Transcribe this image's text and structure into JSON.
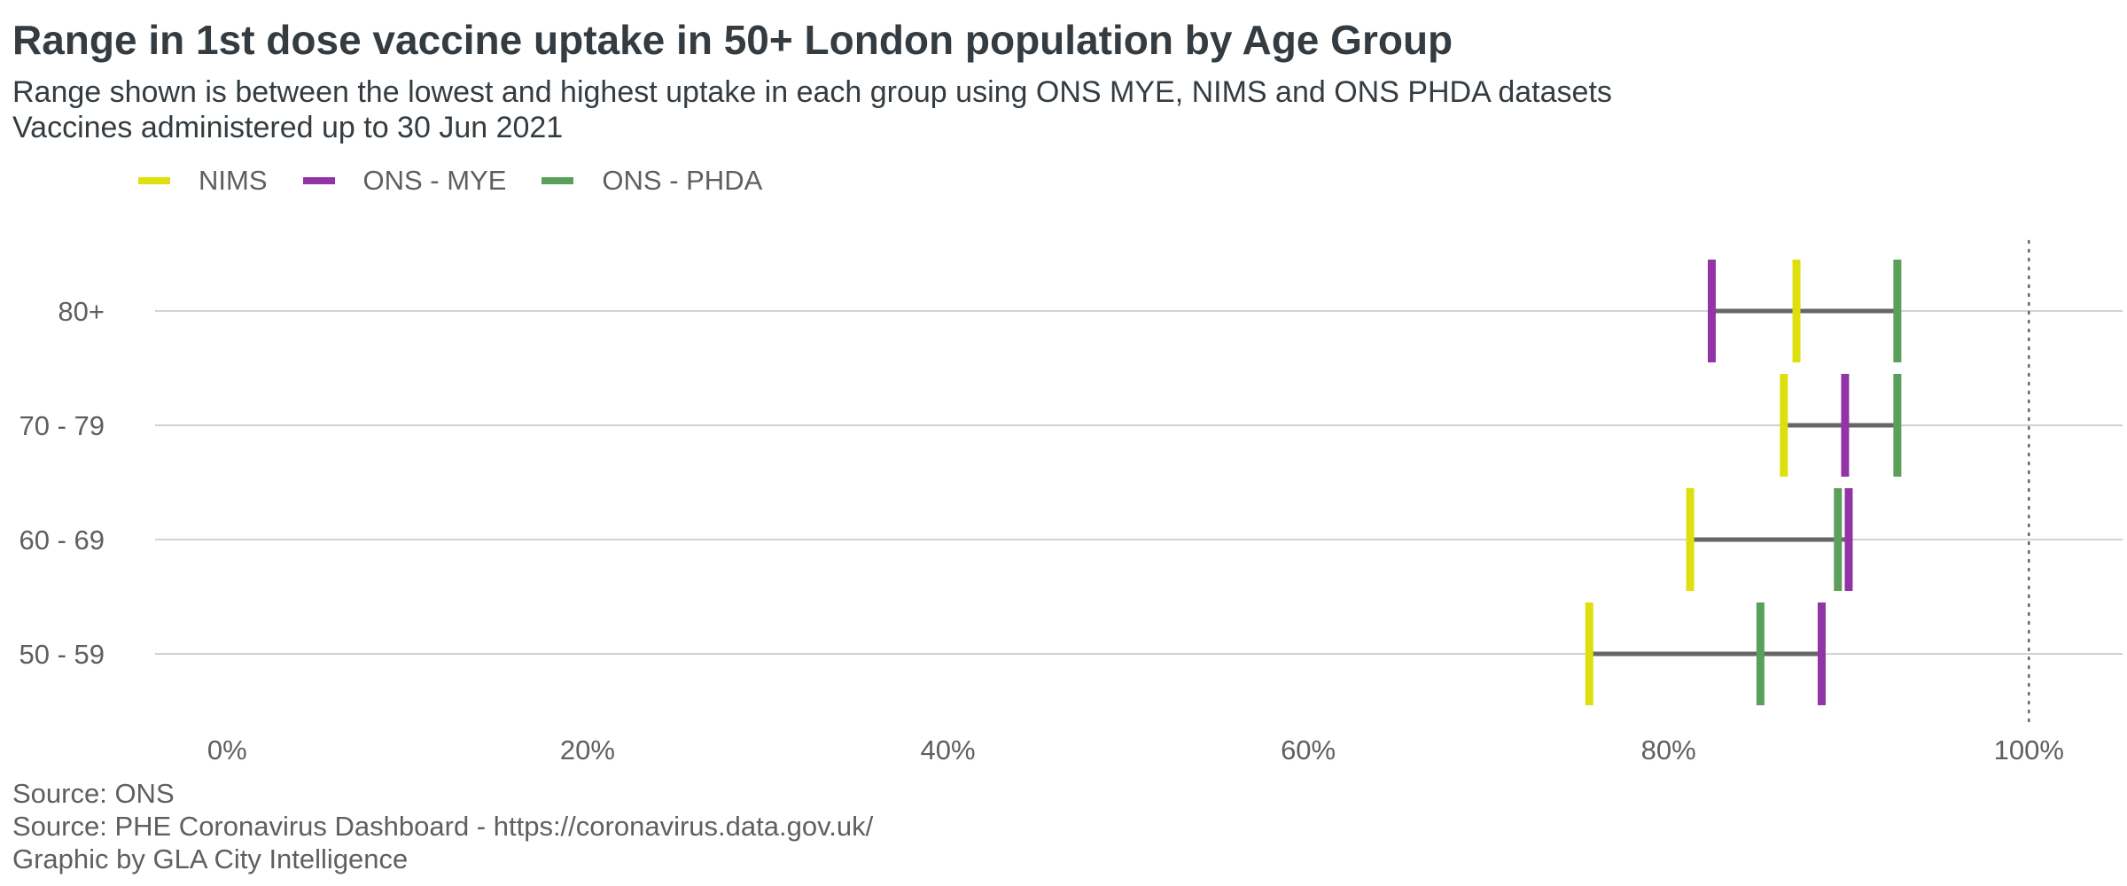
{
  "chart_data": {
    "type": "range",
    "title": "Range in 1st dose vaccine uptake in 50+ London population by Age Group",
    "subtitle_lines": [
      "Range shown is between the lowest and highest uptake in each group using ONS MYE, NIMS and ONS PHDA datasets",
      "Vaccines administered up to 30 Jun 2021"
    ],
    "categories": [
      "80+",
      "70 - 79",
      "60 - 69",
      "50 - 59"
    ],
    "series": [
      {
        "name": "NIMS",
        "color": "#dde00d",
        "values": [
          87.1,
          86.4,
          81.2,
          75.6
        ]
      },
      {
        "name": "ONS - MYE",
        "color": "#9334a6",
        "values": [
          82.4,
          89.8,
          90.0,
          88.5
        ]
      },
      {
        "name": "ONS - PHDA",
        "color": "#5ba05a",
        "values": [
          92.7,
          92.7,
          89.4,
          85.1
        ]
      }
    ],
    "range_line_color": "#666666",
    "x_ticks": [
      "0%",
      "20%",
      "40%",
      "60%",
      "80%",
      "100%"
    ],
    "x_tick_values": [
      0,
      20,
      40,
      60,
      80,
      100
    ],
    "xlim": [
      -4,
      105.2
    ],
    "reference_line": 100,
    "grid": "horizontal",
    "legend_position": "top-left"
  },
  "footer": {
    "lines": [
      "Source: ONS",
      "Source: PHE Coronavirus Dashboard - https://coronavirus.data.gov.uk/",
      "Graphic by GLA City Intelligence"
    ]
  }
}
